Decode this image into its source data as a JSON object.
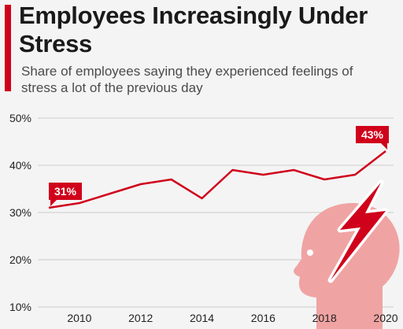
{
  "header": {
    "title": "Employees Increasingly Under Stress",
    "subtitle": "Share of employees saying they experienced feelings of stress a lot of the previous day"
  },
  "colors": {
    "accent": "#d0021b",
    "line": "#d0021b",
    "icon": "#f0a3a3",
    "grid": "#cccccc",
    "background": "#f4f4f4"
  },
  "decoration": {
    "icon": "head-lightning-icon"
  },
  "chart_data": {
    "type": "line",
    "title": "Employees Increasingly Under Stress",
    "subtitle": "Share of employees saying they experienced feelings of stress a lot of the previous day",
    "xlabel": "",
    "ylabel": "",
    "x": [
      2009,
      2010,
      2011,
      2012,
      2013,
      2014,
      2015,
      2016,
      2017,
      2018,
      2019,
      2020
    ],
    "series": [
      {
        "values": [
          31,
          32,
          34,
          36,
          37,
          33,
          39,
          38,
          39,
          37,
          38,
          43
        ]
      }
    ],
    "x_ticks": [
      2010,
      2012,
      2014,
      2016,
      2018,
      2020
    ],
    "y_ticks": [
      10,
      20,
      30,
      40,
      50
    ],
    "y_tick_labels": [
      "10%",
      "20%",
      "30%",
      "40%",
      "50%"
    ],
    "xlim": [
      2009,
      2020
    ],
    "ylim": [
      10,
      50
    ],
    "grid": "horizontal",
    "annotations": [
      {
        "x": 2009,
        "y": 31,
        "text": "31%"
      },
      {
        "x": 2020,
        "y": 43,
        "text": "43%"
      }
    ]
  }
}
